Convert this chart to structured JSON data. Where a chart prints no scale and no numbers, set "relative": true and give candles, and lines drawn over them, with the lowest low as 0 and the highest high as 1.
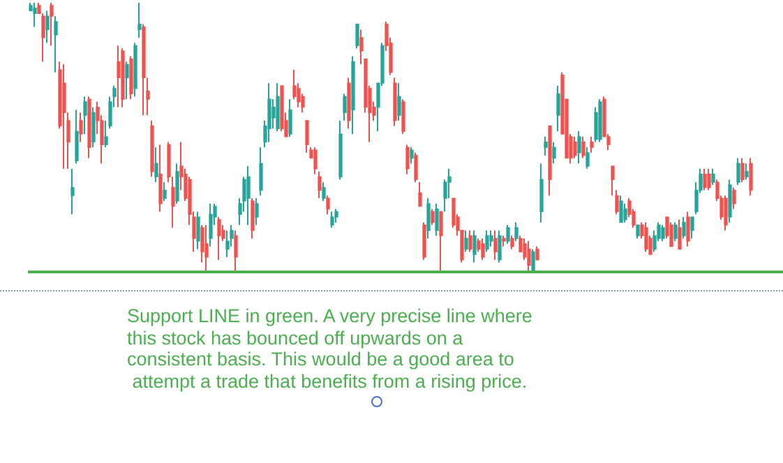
{
  "chart_data": {
    "type": "candlestick",
    "relative": true,
    "ohlc": [
      [
        0.97,
        1,
        0.97,
        0.99
      ],
      [
        0.96,
        1,
        0.91,
        0.98
      ],
      [
        0.99,
        1,
        0.96,
        0.96
      ],
      [
        0.95,
        0.96,
        0.78,
        0.87
      ],
      [
        0.9,
        0.97,
        0.85,
        0.95
      ],
      [
        0.99,
        1,
        0.84,
        0.95
      ],
      [
        0.88,
        0.95,
        0.74,
        0.93
      ],
      [
        0.75,
        0.78,
        0.53,
        0.54
      ],
      [
        0.7,
        0.77,
        0.38,
        0.59
      ],
      [
        0.56,
        0.59,
        0.38,
        0.48
      ],
      [
        0.28,
        0.38,
        0.21,
        0.31
      ],
      [
        0.41,
        0.6,
        0.4,
        0.52
      ],
      [
        0.56,
        0.59,
        0.48,
        0.51
      ],
      [
        0.58,
        0.65,
        0.51,
        0.63
      ],
      [
        0.64,
        0.65,
        0.42,
        0.46
      ],
      [
        0.48,
        0.61,
        0.46,
        0.59
      ],
      [
        0.61,
        0.63,
        0.51,
        0.56
      ],
      [
        0.56,
        0.58,
        0.4,
        0.47
      ],
      [
        0.47,
        0.56,
        0.46,
        0.5
      ],
      [
        0.54,
        0.65,
        0.53,
        0.63
      ],
      [
        0.65,
        0.69,
        0.61,
        0.68
      ],
      [
        0.78,
        0.84,
        0.61,
        0.72
      ],
      [
        0.82,
        0.83,
        0.61,
        0.64
      ],
      [
        0.72,
        0.78,
        0.64,
        0.77
      ],
      [
        0.79,
        0.8,
        0.64,
        0.66
      ],
      [
        0.68,
        0.85,
        0.65,
        0.84
      ],
      [
        0.9,
        1,
        0.87,
        0.92
      ],
      [
        0.91,
        0.92,
        0.58,
        0.72
      ],
      [
        0.67,
        0.72,
        0.58,
        0.64
      ],
      [
        0.54,
        0.56,
        0.35,
        0.37
      ],
      [
        0.35,
        0.46,
        0.33,
        0.4
      ],
      [
        0.36,
        0.47,
        0.22,
        0.25
      ],
      [
        0.27,
        0.33,
        0.26,
        0.3
      ],
      [
        0.47,
        0.48,
        0.33,
        0.35
      ],
      [
        0.31,
        0.35,
        0.16,
        0.24
      ],
      [
        0.26,
        0.4,
        0.25,
        0.37
      ],
      [
        0.39,
        0.48,
        0.3,
        0.35
      ],
      [
        0.36,
        0.38,
        0.26,
        0.27
      ],
      [
        0.34,
        0.35,
        0.17,
        0.21
      ],
      [
        0.2,
        0.22,
        0.07,
        0.12
      ],
      [
        0.11,
        0.22,
        0.08,
        0.2
      ],
      [
        0.16,
        0.17,
        0.03,
        0.07
      ],
      [
        0.1,
        0.17,
        0,
        0.05
      ],
      [
        0.12,
        0.25,
        0.09,
        0.21
      ],
      [
        0.2,
        0.25,
        0.17,
        0.24
      ],
      [
        0.19,
        0.2,
        0.04,
        0.13
      ],
      [
        0.15,
        0.17,
        0.11,
        0.12
      ],
      [
        0.08,
        0.15,
        0.05,
        0.11
      ],
      [
        0.12,
        0.17,
        0.09,
        0.15
      ],
      [
        0.13,
        0.15,
        0,
        0.05
      ],
      [
        0.21,
        0.27,
        0.17,
        0.25
      ],
      [
        0.26,
        0.35,
        0.22,
        0.34
      ],
      [
        0.27,
        0.39,
        0.17,
        0.35
      ],
      [
        0.26,
        0.27,
        0.12,
        0.15
      ],
      [
        0.2,
        0.27,
        0.17,
        0.25
      ],
      [
        0.3,
        0.46,
        0.28,
        0.4
      ],
      [
        0.48,
        0.56,
        0.46,
        0.54
      ],
      [
        0.53,
        0.7,
        0.48,
        0.64
      ],
      [
        0.57,
        0.64,
        0.53,
        0.61
      ],
      [
        0.53,
        0.7,
        0.52,
        0.65
      ],
      [
        0.69,
        0.69,
        0.52,
        0.53
      ],
      [
        0.56,
        0.59,
        0.5,
        0.5
      ],
      [
        0.51,
        0.64,
        0.5,
        0.6
      ],
      [
        0.69,
        0.75,
        0.64,
        0.65
      ],
      [
        0.68,
        0.7,
        0.61,
        0.63
      ],
      [
        0.65,
        0.66,
        0.59,
        0.61
      ],
      [
        0.56,
        0.56,
        0.44,
        0.47
      ],
      [
        0.45,
        0.46,
        0.42,
        0.42
      ],
      [
        0.45,
        0.46,
        0.36,
        0.38
      ],
      [
        0.35,
        0.37,
        0.27,
        0.3
      ],
      [
        0.27,
        0.33,
        0.26,
        0.31
      ],
      [
        0.27,
        0.28,
        0.21,
        0.23
      ],
      [
        0.17,
        0.22,
        0.16,
        0.2
      ],
      [
        0.2,
        0.23,
        0.18,
        0.22
      ],
      [
        0.35,
        0.56,
        0.34,
        0.51
      ],
      [
        0.59,
        0.66,
        0.56,
        0.65
      ],
      [
        0.7,
        0.72,
        0.53,
        0.56
      ],
      [
        0.6,
        0.8,
        0.51,
        0.78
      ],
      [
        0.84,
        0.92,
        0.83,
        0.92
      ],
      [
        0.87,
        0.9,
        0.77,
        0.82
      ],
      [
        0.79,
        0.79,
        0.59,
        0.61
      ],
      [
        0.68,
        0.69,
        0.48,
        0.59
      ],
      [
        0.61,
        0.63,
        0.56,
        0.58
      ],
      [
        0.61,
        0.7,
        0.52,
        0.7
      ],
      [
        0.7,
        0.85,
        0.69,
        0.84
      ],
      [
        0.92,
        0.93,
        0.82,
        0.84
      ],
      [
        0.85,
        0.87,
        0.73,
        0.74
      ],
      [
        0.7,
        0.72,
        0.54,
        0.56
      ],
      [
        0.58,
        0.7,
        0.56,
        0.65
      ],
      [
        0.63,
        0.64,
        0.51,
        0.52
      ],
      [
        0.46,
        0.47,
        0.36,
        0.38
      ],
      [
        0.42,
        0.46,
        0.4,
        0.45
      ],
      [
        0.43,
        0.44,
        0.33,
        0.34
      ],
      [
        0.29,
        0.33,
        0.24,
        0.24
      ],
      [
        0.17,
        0.18,
        0.04,
        0.05
      ],
      [
        0.15,
        0.27,
        0.12,
        0.25
      ],
      [
        0.22,
        0.23,
        0.17,
        0.18
      ],
      [
        0.15,
        0.25,
        0.13,
        0.23
      ],
      [
        0.22,
        0.22,
        0,
        0.13
      ],
      [
        0.27,
        0.34,
        0.22,
        0.33
      ],
      [
        0.33,
        0.38,
        0.27,
        0.35
      ],
      [
        0.27,
        0.27,
        0.16,
        0.17
      ],
      [
        0.2,
        0.21,
        0.13,
        0.15
      ],
      [
        0.15,
        0.15,
        0.03,
        0.04
      ],
      [
        0.08,
        0.15,
        0.07,
        0.12
      ],
      [
        0.13,
        0.15,
        0.07,
        0.08
      ],
      [
        0.06,
        0.15,
        0.03,
        0.13
      ],
      [
        0.11,
        0.12,
        0.07,
        0.08
      ],
      [
        0.1,
        0.12,
        0.04,
        0.05
      ],
      [
        0.08,
        0.15,
        0.07,
        0.13
      ],
      [
        0.11,
        0.15,
        0.09,
        0.13
      ],
      [
        0.12,
        0.15,
        0.04,
        0.07
      ],
      [
        0.04,
        0.15,
        0.03,
        0.13
      ],
      [
        0.12,
        0.13,
        0.09,
        0.11
      ],
      [
        0.11,
        0.17,
        0.1,
        0.16
      ],
      [
        0.12,
        0.13,
        0.08,
        0.09
      ],
      [
        0.12,
        0.18,
        0.11,
        0.16
      ],
      [
        0.12,
        0.13,
        0.07,
        0.07
      ],
      [
        0.1,
        0.12,
        0.04,
        0.05
      ],
      [
        0.08,
        0.11,
        0,
        0.02
      ],
      [
        0,
        0.08,
        0,
        0.07
      ],
      [
        0.08,
        0.09,
        0.04,
        0.04
      ],
      [
        0.22,
        0.4,
        0.18,
        0.34
      ],
      [
        0.46,
        0.5,
        0.43,
        0.48
      ],
      [
        0.54,
        0.54,
        0.28,
        0.34
      ],
      [
        0.42,
        0.48,
        0.4,
        0.46
      ],
      [
        0.58,
        0.69,
        0.52,
        0.66
      ],
      [
        0.73,
        0.74,
        0.51,
        0.51
      ],
      [
        0.64,
        0.64,
        0.42,
        0.42
      ],
      [
        0.5,
        0.51,
        0.4,
        0.42
      ],
      [
        0.48,
        0.5,
        0.42,
        0.43
      ],
      [
        0.44,
        0.52,
        0.4,
        0.5
      ],
      [
        0.48,
        0.5,
        0.42,
        0.43
      ],
      [
        0.39,
        0.46,
        0.38,
        0.44
      ],
      [
        0.48,
        0.5,
        0.44,
        0.46
      ],
      [
        0.49,
        0.61,
        0.48,
        0.59
      ],
      [
        0.49,
        0.64,
        0.48,
        0.63
      ],
      [
        0.64,
        0.65,
        0.5,
        0.5
      ],
      [
        0.5,
        0.51,
        0.45,
        0.47
      ],
      [
        0.39,
        0.39,
        0.28,
        0.34
      ],
      [
        0.28,
        0.3,
        0.21,
        0.22
      ],
      [
        0.18,
        0.28,
        0.18,
        0.26
      ],
      [
        0.19,
        0.25,
        0.18,
        0.23
      ],
      [
        0.26,
        0.27,
        0.2,
        0.21
      ],
      [
        0.22,
        0.23,
        0.16,
        0.17
      ],
      [
        0.13,
        0.17,
        0.12,
        0.17
      ],
      [
        0.17,
        0.18,
        0.12,
        0.13
      ],
      [
        0.16,
        0.18,
        0.07,
        0.08
      ],
      [
        0.12,
        0.13,
        0.06,
        0.06
      ],
      [
        0.08,
        0.15,
        0.07,
        0.13
      ],
      [
        0.12,
        0.18,
        0.11,
        0.17
      ],
      [
        0.12,
        0.17,
        0.11,
        0.16
      ],
      [
        0.2,
        0.2,
        0.12,
        0.13
      ],
      [
        0.17,
        0.18,
        0.09,
        0.09
      ],
      [
        0.12,
        0.18,
        0.11,
        0.17
      ],
      [
        0.16,
        0.19,
        0.08,
        0.08
      ],
      [
        0.13,
        0.2,
        0.12,
        0.18
      ],
      [
        0.2,
        0.22,
        0.09,
        0.11
      ],
      [
        0.15,
        0.2,
        0.12,
        0.2
      ],
      [
        0.22,
        0.33,
        0.21,
        0.3
      ],
      [
        0.3,
        0.38,
        0.29,
        0.36
      ],
      [
        0.36,
        0.38,
        0.3,
        0.31
      ],
      [
        0.36,
        0.38,
        0.3,
        0.31
      ],
      [
        0.33,
        0.38,
        0.32,
        0.36
      ],
      [
        0.33,
        0.34,
        0.26,
        0.27
      ],
      [
        0.27,
        0.28,
        0.19,
        0.2
      ],
      [
        0.27,
        0.28,
        0.15,
        0.17
      ],
      [
        0.2,
        0.34,
        0.18,
        0.32
      ],
      [
        0.3,
        0.31,
        0.23,
        0.25
      ],
      [
        0.33,
        0.42,
        0.32,
        0.4
      ],
      [
        0.4,
        0.42,
        0.33,
        0.34
      ],
      [
        0.35,
        0.4,
        0.34,
        0.37
      ],
      [
        0.4,
        0.42,
        0.28,
        0.3
      ]
    ],
    "ref_lines": [
      {
        "axis": "y",
        "value": 0,
        "color": "#4caf50"
      }
    ],
    "annotations": [
      "Support LINE in green. A very precise line where\nthis stock has bounced off upwards on a\nconsistent basis. This would be a good area to\n attempt a trade that benefits from a rising price."
    ]
  }
}
